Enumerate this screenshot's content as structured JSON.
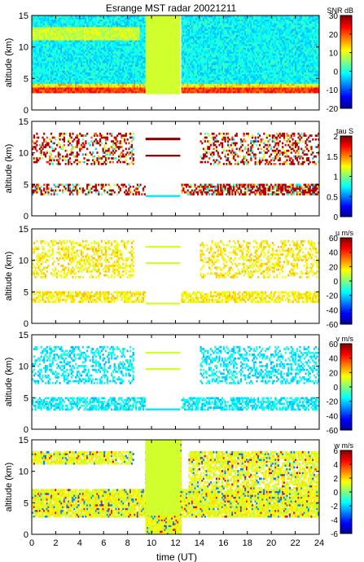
{
  "title": "Esrange MST radar 20021211",
  "xlabel": "time (UT)",
  "x_ticks": [
    0,
    2,
    4,
    6,
    8,
    10,
    12,
    14,
    16,
    18,
    20,
    22,
    24
  ],
  "chart_data": [
    {
      "type": "heatmap",
      "quantity": "SNR",
      "colorbar_label": "SNR dB",
      "ylabel": "altitude (km)",
      "xlim": [
        0,
        24
      ],
      "ylim": [
        0,
        15
      ],
      "y_ticks": [
        0,
        5,
        10,
        15
      ],
      "clim": [
        -20,
        30
      ],
      "cbar_ticks": [
        -20,
        -10,
        0,
        10,
        20,
        30
      ],
      "data_extent_km": [
        2.5,
        15
      ],
      "gap_band_hours": [
        9.5,
        12.4
      ]
    },
    {
      "type": "heatmap",
      "quantity": "tau",
      "colorbar_label": "tau S",
      "ylabel": "altitude (km)",
      "xlim": [
        0,
        24
      ],
      "ylim": [
        0,
        15
      ],
      "y_ticks": [
        0,
        5,
        10,
        15
      ],
      "clim": [
        0,
        2
      ],
      "cbar_ticks": [
        0,
        0.5,
        1,
        1.5,
        2
      ],
      "cbar_tick_labels": [
        "0",
        "0.5",
        "1",
        "1.5",
        "2"
      ]
    },
    {
      "type": "heatmap",
      "quantity": "u",
      "colorbar_label": "u m/s",
      "ylabel": "altitude (km)",
      "xlim": [
        0,
        24
      ],
      "ylim": [
        0,
        15
      ],
      "y_ticks": [
        0,
        5,
        10,
        15
      ],
      "clim": [
        -60,
        60
      ],
      "cbar_ticks": [
        -60,
        -40,
        -20,
        0,
        20,
        40,
        60
      ]
    },
    {
      "type": "heatmap",
      "quantity": "v",
      "colorbar_label": "v m/s",
      "ylabel": "altitude (km)",
      "xlim": [
        0,
        24
      ],
      "ylim": [
        0,
        15
      ],
      "y_ticks": [
        0,
        5,
        10,
        15
      ],
      "clim": [
        -60,
        60
      ],
      "cbar_ticks": [
        -60,
        -40,
        -20,
        0,
        20,
        40,
        60
      ]
    },
    {
      "type": "heatmap",
      "quantity": "w",
      "colorbar_label": "w m/s",
      "ylabel": "altitude (km)",
      "xlim": [
        0,
        24
      ],
      "ylim": [
        0,
        15
      ],
      "y_ticks": [
        0,
        5,
        10,
        15
      ],
      "clim": [
        -6,
        6
      ],
      "cbar_ticks": [
        -6,
        -4,
        -2,
        0,
        2,
        4,
        6
      ]
    }
  ]
}
